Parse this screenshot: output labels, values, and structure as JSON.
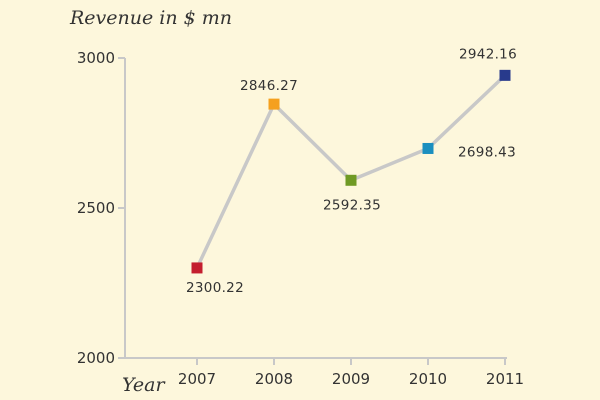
{
  "chart_data": {
    "type": "line",
    "title": "",
    "ylabel": "Revenue in $ mn",
    "xlabel": "Year",
    "categories": [
      "2007",
      "2008",
      "2009",
      "2010",
      "2011"
    ],
    "values": [
      2300.22,
      2846.27,
      2592.35,
      2698.43,
      2942.16
    ],
    "value_labels": [
      "2300.22",
      "2846.27",
      "2592.35",
      "2698.43",
      "2942.16"
    ],
    "point_colors": [
      "#c41e2e",
      "#f5a01e",
      "#6f9a24",
      "#1b8fbf",
      "#283a8c"
    ],
    "line_color": "#c8c8c8",
    "axis_color": "#c8c8c8",
    "background": "#fdf7dc",
    "ylim": [
      2000,
      3000
    ],
    "yticks": [
      "2000",
      "2500",
      "3000"
    ],
    "grid": false,
    "legend": "none"
  }
}
